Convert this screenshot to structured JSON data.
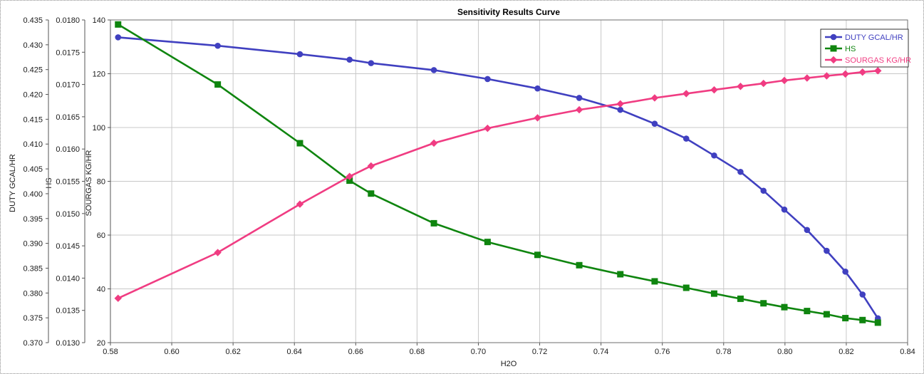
{
  "chart_data": {
    "type": "line",
    "title": "Sensitivity Results Curve",
    "xlabel": "H2O",
    "xlim": [
      0.58,
      0.84
    ],
    "x_ticks": [
      "0.58",
      "0.60",
      "0.62",
      "0.64",
      "0.66",
      "0.68",
      "0.70",
      "0.72",
      "0.74",
      "0.76",
      "0.78",
      "0.80",
      "0.82",
      "0.84"
    ],
    "grid": true,
    "legend_position": "top-right",
    "axes": [
      {
        "label": "DUTY GCAL/HR",
        "lim": [
          0.37,
          0.435
        ],
        "ticks": [
          "0.370",
          "0.375",
          "0.380",
          "0.385",
          "0.390",
          "0.395",
          "0.400",
          "0.405",
          "0.410",
          "0.415",
          "0.420",
          "0.425",
          "0.430",
          "0.435"
        ]
      },
      {
        "label": "HS",
        "lim": [
          0.013,
          0.018
        ],
        "ticks": [
          "0.0130",
          "0.0135",
          "0.0140",
          "0.0145",
          "0.0150",
          "0.0155",
          "0.0160",
          "0.0165",
          "0.0170",
          "0.0175",
          "0.0180"
        ]
      },
      {
        "label": "SOURGAS KG/HR",
        "lim": [
          20,
          140
        ],
        "ticks": [
          "20",
          "40",
          "60",
          "80",
          "100",
          "120",
          "140"
        ]
      }
    ],
    "series": [
      {
        "name": "DUTY GCAL/HR",
        "axis": 0,
        "color": "#4040c0",
        "marker": "circle",
        "x": [
          0.5825,
          0.615,
          0.6418,
          0.658,
          0.665,
          0.6855,
          0.703,
          0.7193,
          0.7329,
          0.7463,
          0.7575,
          0.7678,
          0.7769,
          0.7855,
          0.793,
          0.7998,
          0.8072,
          0.8136,
          0.8197,
          0.8253,
          0.8303
        ],
        "y": [
          0.4315,
          0.4298,
          0.4281,
          0.427,
          0.4263,
          0.4249,
          0.4231,
          0.4212,
          0.4193,
          0.4169,
          0.4141,
          0.4111,
          0.4077,
          0.4044,
          0.4006,
          0.3968,
          0.3927,
          0.3885,
          0.3843,
          0.3797,
          0.3749
        ]
      },
      {
        "name": "HS",
        "axis": 1,
        "color": "#0f850f",
        "marker": "square",
        "x": [
          0.5825,
          0.615,
          0.6418,
          0.658,
          0.665,
          0.6855,
          0.703,
          0.7193,
          0.7329,
          0.7463,
          0.7575,
          0.7678,
          0.7769,
          0.7855,
          0.793,
          0.7998,
          0.8072,
          0.8136,
          0.8197,
          0.8253,
          0.8303
        ],
        "y": [
          0.01793,
          0.017,
          0.01609,
          0.01551,
          0.01531,
          0.01485,
          0.01456,
          0.01436,
          0.0142,
          0.01406,
          0.01395,
          0.01385,
          0.01376,
          0.01368,
          0.01361,
          0.01355,
          0.01349,
          0.01344,
          0.01338,
          0.01335,
          0.01331
        ]
      },
      {
        "name": "SOURGAS KG/HR",
        "axis": 2,
        "color": "#f03c82",
        "marker": "diamond",
        "x": [
          0.5825,
          0.615,
          0.6418,
          0.658,
          0.665,
          0.6855,
          0.703,
          0.7193,
          0.7329,
          0.7463,
          0.7575,
          0.7678,
          0.7769,
          0.7855,
          0.793,
          0.7998,
          0.8072,
          0.8136,
          0.8197,
          0.8253,
          0.8303
        ],
        "y": [
          36.5,
          53.5,
          71.5,
          81.8,
          85.7,
          94.2,
          99.7,
          103.6,
          106.6,
          108.8,
          111.0,
          112.6,
          114.0,
          115.3,
          116.4,
          117.5,
          118.4,
          119.2,
          119.9,
          120.6,
          121.1
        ]
      }
    ]
  }
}
